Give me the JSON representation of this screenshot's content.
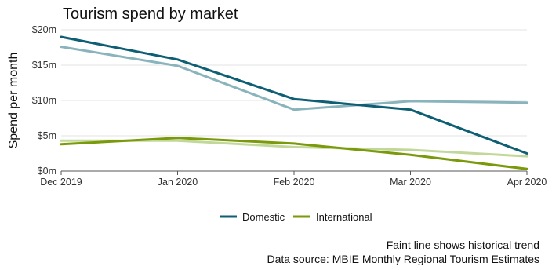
{
  "chart_data": {
    "type": "line",
    "title": "Tourism spend by market",
    "ylabel": "Spend per month",
    "xlabel": "",
    "categories": [
      "Dec 2019",
      "Jan 2020",
      "Feb 2020",
      "Mar 2020",
      "Apr 2020"
    ],
    "y_ticks": [
      "$0m",
      "$5m",
      "$10m",
      "$15m",
      "$20m"
    ],
    "y_tick_values": [
      0,
      5,
      10,
      15,
      20
    ],
    "ylim": [
      0,
      20
    ],
    "grid": "horizontal",
    "legend_position": "bottom",
    "series": [
      {
        "name": "Domestic",
        "color": "#0e5f74",
        "values": [
          19.0,
          15.8,
          10.2,
          8.7,
          2.5
        ]
      },
      {
        "name": "International",
        "color": "#7a9a0b",
        "values": [
          3.8,
          4.7,
          3.9,
          2.3,
          0.3
        ]
      }
    ],
    "trend_series": [
      {
        "color": "#8ab4bc",
        "values": [
          17.6,
          14.9,
          8.7,
          9.9,
          9.7
        ]
      },
      {
        "color": "#c2d89a",
        "values": [
          4.3,
          4.3,
          3.4,
          3.0,
          2.1
        ]
      }
    ],
    "notes": [
      "Faint line shows historical trend",
      "Data source: MBIE Monthly Regional Tourism Estimates"
    ]
  }
}
